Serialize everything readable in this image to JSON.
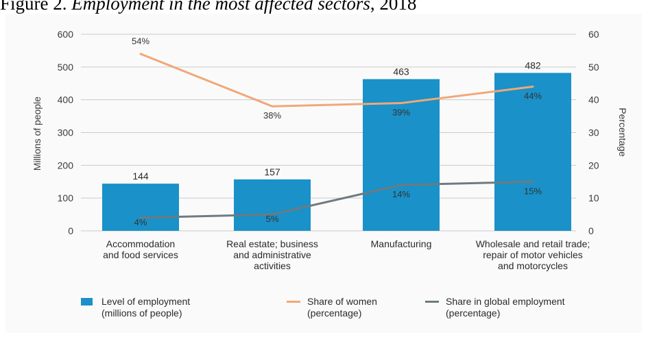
{
  "figure": {
    "title_prefix": "Figure 2. ",
    "title_italic": "Employment in the most affected sectors",
    "title_suffix": ", 2018"
  },
  "chart_data": {
    "type": "bar",
    "categories": [
      [
        "Accommodation",
        "and food services"
      ],
      [
        "Real estate; business",
        "and administrative",
        "activities"
      ],
      [
        "Manufacturing"
      ],
      [
        "Wholesale and retail trade;",
        "repair of motor vehicles",
        "and motorcycles"
      ]
    ],
    "series": [
      {
        "name_lines": [
          "Level of employment",
          "(millions of people)"
        ],
        "kind": "bar",
        "axis": "left",
        "color": "#1a91c8",
        "values": [
          144,
          157,
          463,
          482
        ],
        "labels": [
          "144",
          "157",
          "463",
          "482"
        ]
      },
      {
        "name_lines": [
          "Share of women",
          "(percentage)"
        ],
        "kind": "line",
        "axis": "right",
        "color": "#f0a878",
        "values": [
          54,
          38,
          39,
          44
        ],
        "labels": [
          "54%",
          "38%",
          "39%",
          "44%"
        ]
      },
      {
        "name_lines": [
          "Share in global employment",
          "(percentage)"
        ],
        "kind": "line",
        "axis": "right",
        "color": "#6e7a7f",
        "values": [
          4,
          5,
          14,
          15
        ],
        "labels": [
          "4%",
          "5%",
          "14%",
          "15%"
        ]
      }
    ],
    "y_left": {
      "label": "Millions of people",
      "range": [
        0,
        600
      ],
      "ticks": [
        "0",
        "100",
        "200",
        "300",
        "400",
        "500",
        "600"
      ]
    },
    "y_right": {
      "label": "Percentage",
      "range": [
        0,
        60
      ],
      "ticks": [
        "0",
        "10",
        "20",
        "30",
        "40",
        "50",
        "60"
      ]
    },
    "grid": true,
    "legend_position": "bottom"
  }
}
